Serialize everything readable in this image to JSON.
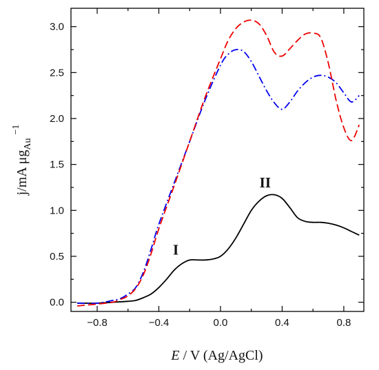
{
  "chart_data": {
    "type": "line",
    "x_axis": {
      "label_italic": "E",
      "label_rest": " / V (Ag/AgCl)",
      "lim": [
        -0.97,
        0.93
      ],
      "ticks": [
        -0.8,
        -0.4,
        0.0,
        0.4,
        0.8
      ],
      "tick_labels": [
        "−0.8",
        "−0.4",
        "0.0",
        "0.4",
        "0.8"
      ]
    },
    "y_axis": {
      "label_main": "j/mA μg",
      "label_sub": "Au",
      "label_sup": "−1",
      "lim": [
        -0.1,
        3.2
      ],
      "ticks": [
        0.0,
        0.5,
        1.0,
        1.5,
        2.0,
        2.5,
        3.0
      ],
      "tick_labels": [
        "0.0",
        "0.5",
        "1.0",
        "1.5",
        "2.0",
        "2.5",
        "3.0"
      ]
    },
    "grid": false,
    "legend": "none",
    "annotations": [
      {
        "text": "I",
        "x": -0.29,
        "y": 0.52
      },
      {
        "text": "II",
        "x": 0.29,
        "y": 1.25
      }
    ],
    "series": [
      {
        "color": "#000000",
        "style": "solid",
        "x": [
          -0.93,
          -0.8,
          -0.7,
          -0.6,
          -0.55,
          -0.5,
          -0.45,
          -0.4,
          -0.35,
          -0.3,
          -0.25,
          -0.2,
          -0.15,
          -0.1,
          -0.05,
          0.0,
          0.05,
          0.1,
          0.15,
          0.2,
          0.25,
          0.3,
          0.35,
          0.4,
          0.45,
          0.5,
          0.55,
          0.6,
          0.65,
          0.7,
          0.75,
          0.8,
          0.85,
          0.9
        ],
        "y": [
          -0.01,
          -0.01,
          0.0,
          0.01,
          0.02,
          0.05,
          0.09,
          0.16,
          0.25,
          0.35,
          0.42,
          0.46,
          0.46,
          0.46,
          0.47,
          0.5,
          0.58,
          0.7,
          0.85,
          1.0,
          1.1,
          1.16,
          1.17,
          1.13,
          1.03,
          0.92,
          0.88,
          0.87,
          0.87,
          0.86,
          0.84,
          0.81,
          0.77,
          0.73
        ]
      },
      {
        "color": "#0000ee",
        "style": "dashdot",
        "x": [
          -0.93,
          -0.8,
          -0.7,
          -0.65,
          -0.6,
          -0.55,
          -0.5,
          -0.45,
          -0.4,
          -0.3,
          -0.2,
          -0.1,
          0.0,
          0.05,
          0.1,
          0.15,
          0.2,
          0.25,
          0.3,
          0.35,
          0.4,
          0.45,
          0.5,
          0.55,
          0.6,
          0.65,
          0.7,
          0.75,
          0.8,
          0.85,
          0.9
        ],
        "y": [
          -0.01,
          -0.01,
          0.02,
          0.04,
          0.09,
          0.16,
          0.33,
          0.58,
          0.85,
          1.3,
          1.75,
          2.2,
          2.58,
          2.7,
          2.75,
          2.73,
          2.62,
          2.46,
          2.3,
          2.17,
          2.1,
          2.18,
          2.3,
          2.39,
          2.45,
          2.47,
          2.45,
          2.39,
          2.28,
          2.18,
          2.25
        ]
      },
      {
        "color": "#ee0000",
        "style": "dash",
        "x": [
          -0.93,
          -0.8,
          -0.7,
          -0.65,
          -0.6,
          -0.55,
          -0.5,
          -0.45,
          -0.4,
          -0.3,
          -0.2,
          -0.1,
          0.0,
          0.05,
          0.1,
          0.15,
          0.2,
          0.25,
          0.3,
          0.35,
          0.4,
          0.45,
          0.5,
          0.55,
          0.6,
          0.65,
          0.7,
          0.75,
          0.8,
          0.85,
          0.9
        ],
        "y": [
          -0.04,
          -0.02,
          0.0,
          0.03,
          0.07,
          0.15,
          0.3,
          0.53,
          0.8,
          1.27,
          1.75,
          2.23,
          2.65,
          2.85,
          2.98,
          3.05,
          3.07,
          3.03,
          2.9,
          2.72,
          2.68,
          2.76,
          2.85,
          2.92,
          2.93,
          2.88,
          2.6,
          2.2,
          1.9,
          1.76,
          1.93
        ]
      }
    ]
  }
}
